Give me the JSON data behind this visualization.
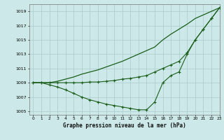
{
  "title": "Graphe pression niveau de la mer (hPa)",
  "bg_color": "#cce8e8",
  "grid_color": "#aacccc",
  "line_color": "#1a5e1a",
  "xlim": [
    -0.5,
    23
  ],
  "ylim": [
    1004.5,
    1020
  ],
  "yticks": [
    1005,
    1007,
    1009,
    1011,
    1013,
    1015,
    1017,
    1019
  ],
  "xticks": [
    0,
    1,
    2,
    3,
    4,
    5,
    6,
    7,
    8,
    9,
    10,
    11,
    12,
    13,
    14,
    15,
    16,
    17,
    18,
    19,
    20,
    21,
    22,
    23
  ],
  "y_top": [
    1009.0,
    1009.0,
    1009.0,
    1009.2,
    1009.5,
    1009.8,
    1010.2,
    1010.5,
    1010.8,
    1011.2,
    1011.6,
    1012.0,
    1012.5,
    1013.0,
    1013.5,
    1014.0,
    1015.0,
    1015.8,
    1016.5,
    1017.2,
    1018.0,
    1018.5,
    1019.0,
    1019.5
  ],
  "y_mid": [
    1009.0,
    1009.0,
    1009.0,
    1009.0,
    1009.0,
    1009.0,
    1009.0,
    1009.1,
    1009.1,
    1009.2,
    1009.3,
    1009.5,
    1009.6,
    1009.8,
    1010.0,
    1010.5,
    1011.0,
    1011.5,
    1012.0,
    1013.2,
    1015.0,
    1016.5,
    1018.0,
    1019.5
  ],
  "y_bot": [
    1009.0,
    1009.0,
    1008.7,
    1008.4,
    1008.0,
    1007.5,
    1007.0,
    1006.6,
    1006.3,
    1006.0,
    1005.8,
    1005.6,
    1005.4,
    1005.2,
    1005.2,
    1006.3,
    1009.0,
    1010.0,
    1010.5,
    1013.0,
    1015.0,
    1016.5,
    1018.0,
    1019.5
  ]
}
